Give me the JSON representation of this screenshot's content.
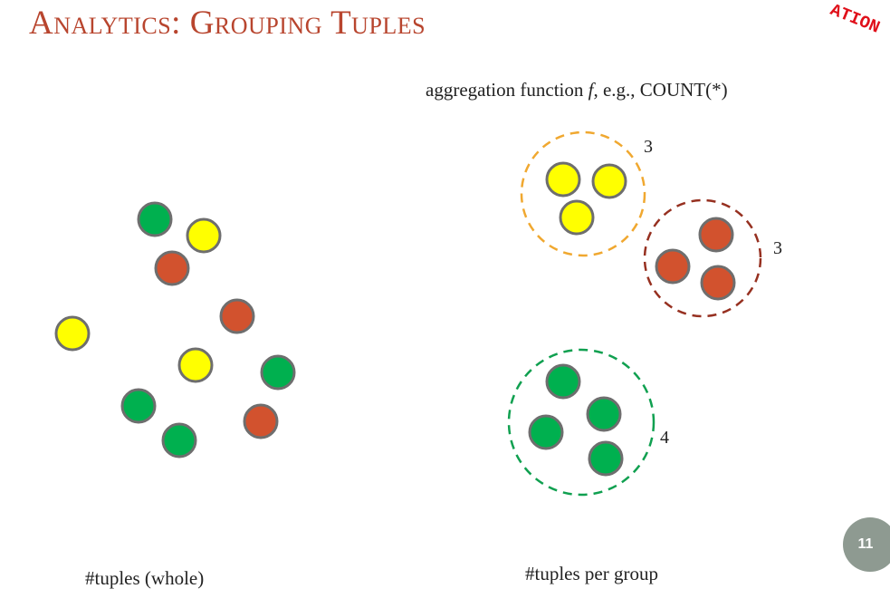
{
  "slide": {
    "title": "Analytics: Grouping Tuples",
    "stamp_text": "ATION",
    "page_number": "11"
  },
  "aggregation_label": {
    "prefix": "aggregation function ",
    "function_symbol": "f",
    "suffix": ", e.g., COUNT(*)"
  },
  "colors": {
    "yellow": "#ffff00",
    "red": "#d2522e",
    "green": "#00b04f",
    "outline": "#6e6e6e",
    "yellow_group_border": "#f0a830",
    "red_group_border": "#963020",
    "green_group_border": "#10a050"
  },
  "groups": [
    {
      "name": "yellow",
      "count": "3"
    },
    {
      "name": "red",
      "count": "3"
    },
    {
      "name": "green",
      "count": "4"
    }
  ],
  "captions": {
    "left": "#tuples (whole)",
    "right": "#tuples per group"
  }
}
